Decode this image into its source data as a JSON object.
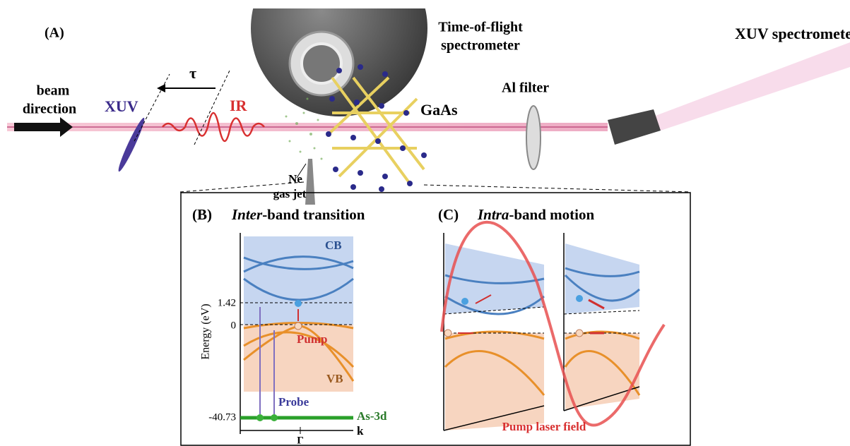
{
  "panel_a": {
    "label": "(A)",
    "tof_spectrometer": [
      "Time-of-flight",
      "spectrometer"
    ],
    "xuv_spectrometer": "XUV spectrometer",
    "beam_direction": [
      "beam",
      "direction"
    ],
    "xuv": "XUV",
    "ir": "IR",
    "delay": "τ",
    "al_filter": "Al filter",
    "sample": "GaAs",
    "gas_jet": [
      "Ne",
      "gas jet"
    ]
  },
  "panel_b": {
    "label": "(B)",
    "title": {
      "emphasis": "Inter",
      "rest": "-band transition"
    },
    "cb": "CB",
    "vb": "VB",
    "y_axis": "Energy (eV)",
    "levels": [
      "1.42",
      "0",
      "-40.73"
    ],
    "pump": "Pump",
    "probe": "Probe",
    "core": "As-3d",
    "x_axis": "k",
    "gamma": "Γ"
  },
  "panel_c": {
    "label": "(C)",
    "title": {
      "emphasis": "Intra",
      "rest": "-band motion"
    },
    "field": "Pump laser field"
  }
}
